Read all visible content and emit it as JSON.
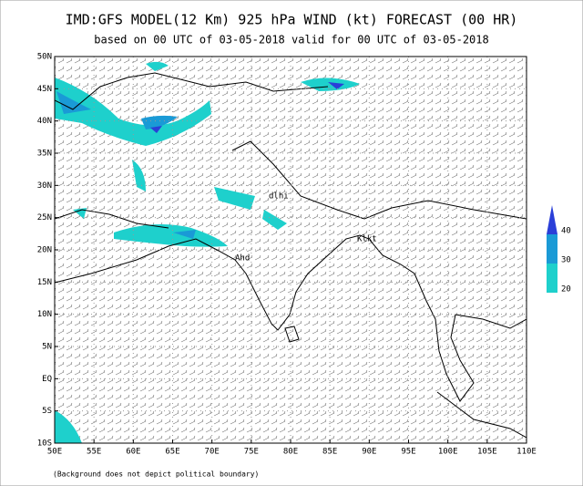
{
  "header": {
    "title": "IMD:GFS MODEL(12 Km) 925 hPa WIND (kt) FORECAST (00 HR)",
    "subtitle": "based on 00 UTC of 03-05-2018 valid for 00 UTC of 03-05-2018"
  },
  "map": {
    "lat_labels": [
      "50N",
      "45N",
      "40N",
      "35N",
      "30N",
      "25N",
      "20N",
      "15N",
      "10N",
      "5N",
      "EQ",
      "5S",
      "10S"
    ],
    "lon_labels": [
      "50E",
      "55E",
      "60E",
      "65E",
      "70E",
      "75E",
      "80E",
      "85E",
      "90E",
      "95E",
      "100E",
      "105E",
      "110E"
    ],
    "place_labels": [
      "dlhi",
      "Klkt",
      "Ahd"
    ]
  },
  "legend": {
    "levels": [
      {
        "label": "40",
        "color": "#2a3fd8"
      },
      {
        "label": "30",
        "color": "#1a9ad6"
      },
      {
        "label": "20",
        "color": "#1ed0cc"
      }
    ]
  },
  "footnote": "(Background does not depict political boundary)"
}
